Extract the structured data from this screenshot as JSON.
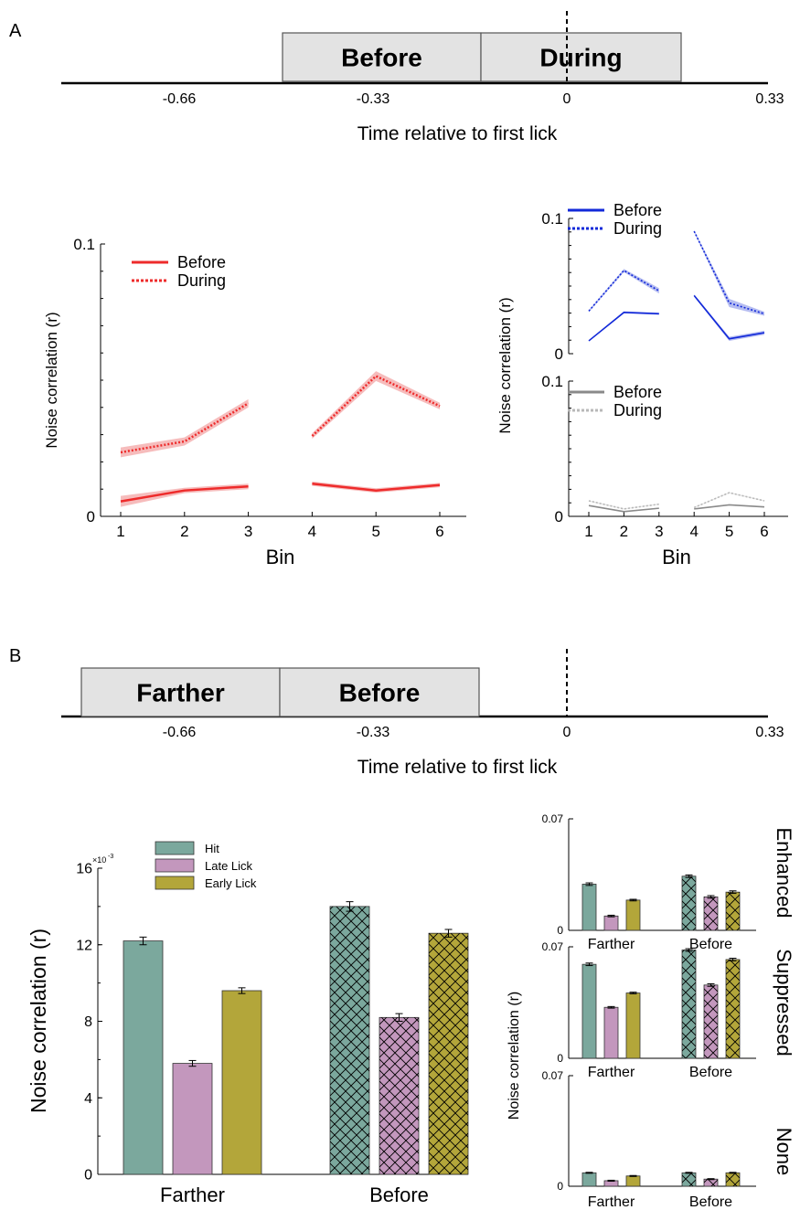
{
  "panel_labels": {
    "a": "A",
    "b": "B"
  },
  "colors": {
    "red": "#ee2b2b",
    "red_band": "#f3a6a6",
    "blue": "#1229d9",
    "blue_band": "#9da7ec",
    "gray": "#8a8a8a",
    "gray_light": "#b8b8b8",
    "hit": "#7ba89d",
    "late": "#c397bd",
    "early": "#b3a63a",
    "box_fill": "#e3e3e3"
  },
  "timeline_a": {
    "boxes": [
      "Before",
      "During"
    ],
    "ticks": [
      "-0.66",
      "-0.33",
      "0",
      "0.33"
    ],
    "xlabel": "Time relative to first lick"
  },
  "timeline_b": {
    "boxes": [
      "Farther",
      "Before"
    ],
    "ticks": [
      "-0.66",
      "-0.33",
      "0",
      "0.33"
    ],
    "xlabel": "Time relative to first lick"
  },
  "chart_data": [
    {
      "id": "a-main",
      "type": "line",
      "xlabel": "Bin",
      "ylabel": "Noise correlation (r)",
      "ylim": [
        0,
        0.1
      ],
      "yticks": [
        "0",
        "0.1"
      ],
      "x": [
        1,
        2,
        3,
        4,
        5,
        6
      ],
      "segments": [
        [
          1,
          2,
          3
        ],
        [
          4,
          5,
          6
        ]
      ],
      "series": [
        {
          "name": "Before",
          "style": "solid",
          "color": "red",
          "values": [
            0.0055,
            0.0095,
            0.011,
            0.012,
            0.0095,
            0.0115
          ],
          "err": [
            0.002,
            0.001,
            0.001,
            0.0008,
            0.0008,
            0.0008
          ]
        },
        {
          "name": "During",
          "style": "dotted",
          "color": "red",
          "values": [
            0.0235,
            0.0275,
            0.0415,
            0.0295,
            0.0515,
            0.0405
          ],
          "err": [
            0.0018,
            0.0015,
            0.0015,
            0.001,
            0.0018,
            0.0012
          ]
        }
      ],
      "legend": "top-left"
    },
    {
      "id": "a-enhanced",
      "type": "line",
      "ylim": [
        0,
        0.1
      ],
      "yticks": [
        "0",
        "0.1"
      ],
      "x": [
        1,
        2,
        3,
        4,
        5,
        6
      ],
      "segments": [
        [
          1,
          2,
          3
        ],
        [
          4,
          5,
          6
        ]
      ],
      "series": [
        {
          "name": "Before",
          "style": "solid",
          "color": "blue",
          "values": [
            0.0095,
            0.0305,
            0.0295,
            0.043,
            0.011,
            0.0155
          ],
          "err": [
            0.0005,
            0.0008,
            0.0008,
            0.0008,
            0.0015,
            0.0015
          ]
        },
        {
          "name": "During",
          "style": "dotted",
          "color": "blue",
          "values": [
            0.0315,
            0.0615,
            0.0465,
            0.0905,
            0.0375,
            0.0295
          ],
          "err": [
            0.0008,
            0.0012,
            0.002,
            0.0008,
            0.003,
            0.0015
          ]
        }
      ],
      "legend": "top-left"
    },
    {
      "id": "a-none",
      "type": "line",
      "xlabel": "Bin",
      "ylim": [
        0,
        0.1
      ],
      "yticks": [
        "0",
        "0.1"
      ],
      "x": [
        1,
        2,
        3,
        4,
        5,
        6
      ],
      "segments": [
        [
          1,
          2,
          3
        ],
        [
          4,
          5,
          6
        ]
      ],
      "series": [
        {
          "name": "Before",
          "style": "solid",
          "color": "gray",
          "values": [
            0.008,
            0.0035,
            0.006,
            0.0055,
            0.0085,
            0.007
          ],
          "err": [
            0.0004,
            0.0004,
            0.0004,
            0.0004,
            0.0004,
            0.0004
          ]
        },
        {
          "name": "During",
          "style": "dotted",
          "color": "gray_light",
          "values": [
            0.0115,
            0.0055,
            0.009,
            0.0065,
            0.0175,
            0.0115
          ],
          "err": [
            0.0004,
            0.0004,
            0.0004,
            0.0004,
            0.0004,
            0.0004
          ]
        }
      ],
      "legend": "top-left"
    },
    {
      "id": "b-main",
      "type": "bar",
      "ylabel": "Noise correlation (r)",
      "yscale_label": "×10",
      "yscale_exp": "-3",
      "ylim": [
        0,
        16
      ],
      "yticks": [
        "0",
        "4",
        "8",
        "12",
        "16"
      ],
      "categories": [
        "Farther",
        "Before"
      ],
      "series": [
        {
          "name": "Hit",
          "color": "hit",
          "values": [
            12.2,
            14.0
          ],
          "err": [
            0.2,
            0.25
          ]
        },
        {
          "name": "Late Lick",
          "color": "late",
          "values": [
            5.8,
            8.2
          ],
          "err": [
            0.15,
            0.2
          ]
        },
        {
          "name": "Early Lick",
          "color": "early",
          "values": [
            9.6,
            12.6
          ],
          "err": [
            0.15,
            0.2
          ]
        }
      ],
      "hatched_category": "Before",
      "legend": "top-left"
    },
    {
      "id": "b-enhanced",
      "type": "bar",
      "label": "Enhanced",
      "ylim": [
        0,
        0.07
      ],
      "yticks": [
        "0",
        "0.07"
      ],
      "categories": [
        "Farther",
        "Before"
      ],
      "series": [
        {
          "name": "Hit",
          "color": "hit",
          "values": [
            0.029,
            0.034
          ],
          "err": [
            0.0008,
            0.0008
          ]
        },
        {
          "name": "Late Lick",
          "color": "late",
          "values": [
            0.009,
            0.021
          ],
          "err": [
            0.0005,
            0.0008
          ]
        },
        {
          "name": "Early Lick",
          "color": "early",
          "values": [
            0.019,
            0.024
          ],
          "err": [
            0.0005,
            0.0008
          ]
        }
      ],
      "hatched_category": "Before"
    },
    {
      "id": "b-suppressed",
      "type": "bar",
      "label": "Suppressed",
      "ylabel": "Noise correlation (r)",
      "ylim": [
        0,
        0.07
      ],
      "yticks": [
        "0",
        "0.07"
      ],
      "categories": [
        "Farther",
        "Before"
      ],
      "series": [
        {
          "name": "Hit",
          "color": "hit",
          "values": [
            0.059,
            0.068
          ],
          "err": [
            0.0008,
            0.0008
          ]
        },
        {
          "name": "Late Lick",
          "color": "late",
          "values": [
            0.032,
            0.046
          ],
          "err": [
            0.0005,
            0.0008
          ]
        },
        {
          "name": "Early Lick",
          "color": "early",
          "values": [
            0.041,
            0.062
          ],
          "err": [
            0.0005,
            0.0008
          ]
        }
      ],
      "hatched_category": "Before"
    },
    {
      "id": "b-none",
      "type": "bar",
      "label": "None",
      "ylim": [
        0,
        0.07
      ],
      "yticks": [
        "0",
        "0.07"
      ],
      "categories": [
        "Farther",
        "Before"
      ],
      "series": [
        {
          "name": "Hit",
          "color": "hit",
          "values": [
            0.0085,
            0.0085
          ],
          "err": [
            0.0003,
            0.0003
          ]
        },
        {
          "name": "Late Lick",
          "color": "late",
          "values": [
            0.0035,
            0.0045
          ],
          "err": [
            0.0003,
            0.0003
          ]
        },
        {
          "name": "Early Lick",
          "color": "early",
          "values": [
            0.0065,
            0.0085
          ],
          "err": [
            0.0003,
            0.0003
          ]
        }
      ],
      "hatched_category": "Before"
    }
  ]
}
